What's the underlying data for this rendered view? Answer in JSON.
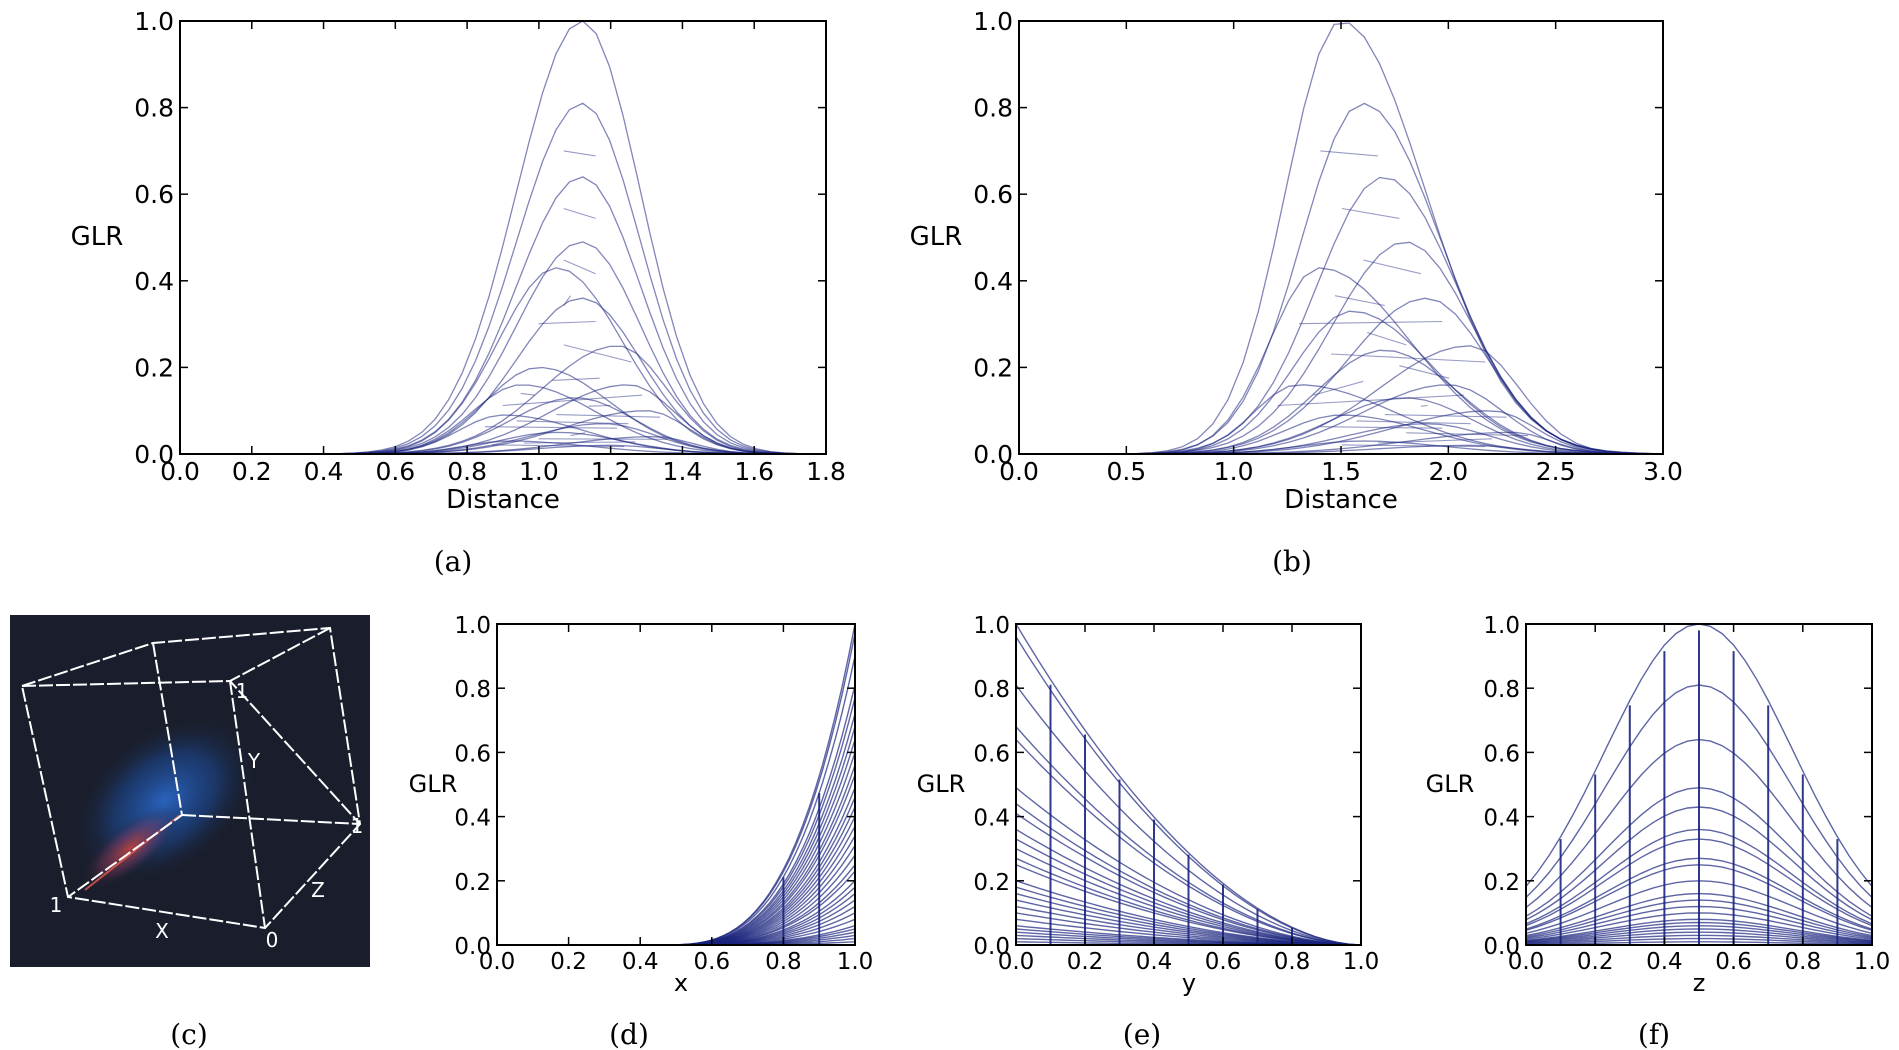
{
  "figure": {
    "captions": [
      "(a)",
      "(b)",
      "(c)",
      "(d)",
      "(e)",
      "(f)"
    ]
  },
  "cube_panel": {
    "labels": {
      "x": "X",
      "y": "Y",
      "z": "Z",
      "x_one": "1",
      "y_one": "1",
      "z_one": "1",
      "z_zero": "0"
    },
    "background_color": "#1a1e2c",
    "edge_color": "#ffffff",
    "blob_colors": [
      "#2a66c4",
      "#c0443c"
    ]
  },
  "chart_data": [
    {
      "id": "a",
      "type": "line",
      "title": "",
      "xlabel": "Distance",
      "ylabel": "GLR",
      "xlim": [
        0.0,
        1.8
      ],
      "ylim": [
        0.0,
        1.0
      ],
      "xticks": [
        "0.0",
        "0.2",
        "0.4",
        "0.6",
        "0.8",
        "1.0",
        "1.2",
        "1.4",
        "1.6",
        "1.8"
      ],
      "yticks": [
        "0.0",
        "0.2",
        "0.4",
        "0.6",
        "0.8",
        "1.0"
      ],
      "grid": false,
      "line_color": "#1a237e",
      "series_peaks": [
        {
          "x": 1.12,
          "y": 1.0
        },
        {
          "x": 1.12,
          "y": 0.81
        },
        {
          "x": 1.12,
          "y": 0.64
        },
        {
          "x": 1.12,
          "y": 0.49
        },
        {
          "x": 1.05,
          "y": 0.43
        },
        {
          "x": 1.12,
          "y": 0.36
        },
        {
          "x": 1.22,
          "y": 0.25
        },
        {
          "x": 1.0,
          "y": 0.2
        },
        {
          "x": 0.95,
          "y": 0.16
        },
        {
          "x": 1.25,
          "y": 0.16
        },
        {
          "x": 1.1,
          "y": 0.13
        },
        {
          "x": 1.3,
          "y": 0.1
        },
        {
          "x": 0.9,
          "y": 0.09
        },
        {
          "x": 1.18,
          "y": 0.07
        },
        {
          "x": 1.05,
          "y": 0.05
        },
        {
          "x": 1.32,
          "y": 0.04
        },
        {
          "x": 0.92,
          "y": 0.03
        },
        {
          "x": 1.2,
          "y": 0.02
        }
      ],
      "x_support": [
        0.45,
        1.72
      ]
    },
    {
      "id": "b",
      "type": "line",
      "title": "",
      "xlabel": "Distance",
      "ylabel": "GLR",
      "xlim": [
        0.0,
        3.0
      ],
      "ylim": [
        0.0,
        1.0
      ],
      "xticks": [
        "0.0",
        "0.5",
        "1.0",
        "1.5",
        "2.0",
        "2.5",
        "3.0"
      ],
      "yticks": [
        "0.0",
        "0.2",
        "0.4",
        "0.6",
        "0.8",
        "1.0"
      ],
      "grid": false,
      "line_color": "#1a237e",
      "series_peaks": [
        {
          "x": 1.5,
          "y": 1.0
        },
        {
          "x": 1.6,
          "y": 0.81
        },
        {
          "x": 1.7,
          "y": 0.64
        },
        {
          "x": 1.8,
          "y": 0.49
        },
        {
          "x": 1.4,
          "y": 0.43
        },
        {
          "x": 1.9,
          "y": 0.36
        },
        {
          "x": 1.55,
          "y": 0.33
        },
        {
          "x": 2.1,
          "y": 0.25
        },
        {
          "x": 1.7,
          "y": 0.24
        },
        {
          "x": 1.3,
          "y": 0.16
        },
        {
          "x": 2.0,
          "y": 0.16
        },
        {
          "x": 1.8,
          "y": 0.13
        },
        {
          "x": 2.2,
          "y": 0.1
        },
        {
          "x": 1.5,
          "y": 0.09
        },
        {
          "x": 1.9,
          "y": 0.07
        },
        {
          "x": 2.3,
          "y": 0.05
        },
        {
          "x": 1.6,
          "y": 0.03
        },
        {
          "x": 2.1,
          "y": 0.02
        }
      ],
      "x_support": [
        0.55,
        2.95
      ]
    },
    {
      "id": "d",
      "type": "line",
      "title": "",
      "xlabel": "x",
      "ylabel": "GLR",
      "xlim": [
        0.0,
        1.0
      ],
      "ylim": [
        0.0,
        1.0
      ],
      "xticks": [
        "0.0",
        "0.2",
        "0.4",
        "0.6",
        "0.8",
        "1.0"
      ],
      "yticks": [
        "0.0",
        "0.2",
        "0.4",
        "0.6",
        "0.8",
        "1.0"
      ],
      "grid": false,
      "line_color": "#1a237e",
      "end_values": [
        1.0,
        0.97,
        0.9,
        0.81,
        0.77,
        0.72,
        0.68,
        0.64,
        0.6,
        0.56,
        0.53,
        0.49,
        0.46,
        0.43,
        0.4,
        0.37,
        0.34,
        0.31,
        0.28,
        0.25,
        0.23,
        0.2,
        0.18,
        0.16,
        0.14,
        0.12,
        0.1,
        0.08,
        0.06,
        0.05,
        0.04,
        0.03,
        0.02,
        0.01
      ],
      "vertical_marks_x": [
        0.8,
        0.9
      ]
    },
    {
      "id": "e",
      "type": "line",
      "title": "",
      "xlabel": "y",
      "ylabel": "GLR",
      "xlim": [
        0.0,
        1.0
      ],
      "ylim": [
        0.0,
        1.0
      ],
      "xticks": [
        "0.0",
        "0.2",
        "0.4",
        "0.6",
        "0.8",
        "1.0"
      ],
      "yticks": [
        "0.0",
        "0.2",
        "0.4",
        "0.6",
        "0.8",
        "1.0"
      ],
      "grid": false,
      "line_color": "#1a237e",
      "start_values": [
        1.0,
        0.96,
        0.81,
        0.68,
        0.64,
        0.49,
        0.44,
        0.41,
        0.36,
        0.33,
        0.3,
        0.27,
        0.25,
        0.2,
        0.18,
        0.16,
        0.14,
        0.12,
        0.1,
        0.08,
        0.06,
        0.05,
        0.04,
        0.03,
        0.02,
        0.01
      ],
      "vertical_marks_x": [
        0.1,
        0.2,
        0.3,
        0.4,
        0.5,
        0.6,
        0.7,
        0.8
      ]
    },
    {
      "id": "f",
      "type": "line",
      "title": "",
      "xlabel": "z",
      "ylabel": "GLR",
      "xlim": [
        0.0,
        1.0
      ],
      "ylim": [
        0.0,
        1.0
      ],
      "xticks": [
        "0.0",
        "0.2",
        "0.4",
        "0.6",
        "0.8",
        "1.0"
      ],
      "yticks": [
        "0.0",
        "0.2",
        "0.4",
        "0.6",
        "0.8",
        "1.0"
      ],
      "grid": false,
      "line_color": "#1a237e",
      "peak_x": 0.5,
      "peak_values": [
        1.0,
        0.81,
        0.64,
        0.49,
        0.43,
        0.36,
        0.33,
        0.27,
        0.25,
        0.2,
        0.16,
        0.14,
        0.12,
        0.1,
        0.08,
        0.07,
        0.06,
        0.05,
        0.04,
        0.03,
        0.02,
        0.01
      ],
      "vertical_marks_x": [
        0.1,
        0.2,
        0.3,
        0.4,
        0.5,
        0.6,
        0.7,
        0.8,
        0.9
      ]
    }
  ]
}
